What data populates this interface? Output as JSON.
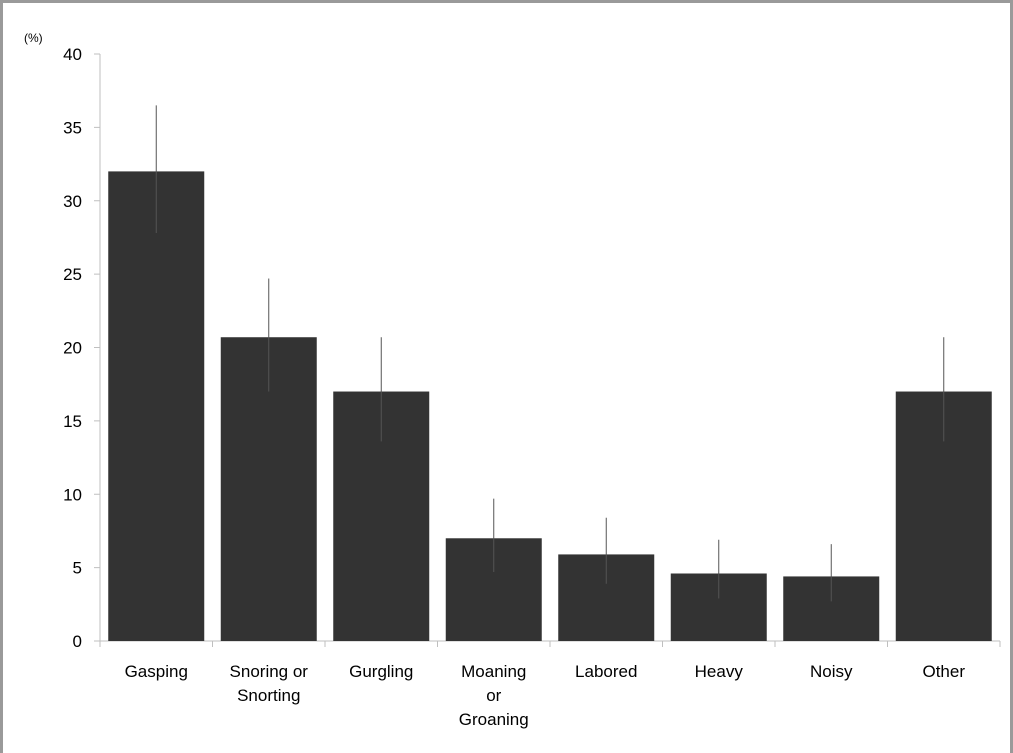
{
  "chart_data": {
    "type": "bar",
    "title": "",
    "xlabel": "",
    "ylabel": "",
    "unit_label": "(%)",
    "ylim": [
      0,
      40
    ],
    "yticks": [
      0,
      5,
      10,
      15,
      20,
      25,
      30,
      35,
      40
    ],
    "grid": false,
    "categories": [
      "Gasping",
      "Snoring or Snorting",
      "Gurgling",
      "Moaning or Groaning",
      "Labored",
      "Heavy",
      "Noisy",
      "Other"
    ],
    "category_lines": [
      [
        "Gasping"
      ],
      [
        "Snoring or",
        "Snorting"
      ],
      [
        "Gurgling"
      ],
      [
        "Moaning",
        "or",
        "Groaning"
      ],
      [
        "Labored"
      ],
      [
        "Heavy"
      ],
      [
        "Noisy"
      ],
      [
        "Other"
      ]
    ],
    "series": [
      {
        "values": [
          32.0,
          20.7,
          17.0,
          7.0,
          5.9,
          4.6,
          4.4,
          17.0
        ],
        "error_low": [
          27.8,
          17.0,
          13.6,
          4.7,
          3.9,
          2.9,
          2.7,
          13.6
        ],
        "error_high": [
          36.5,
          24.7,
          20.7,
          9.7,
          8.4,
          6.9,
          6.6,
          20.7
        ],
        "color": "#333333"
      }
    ]
  }
}
